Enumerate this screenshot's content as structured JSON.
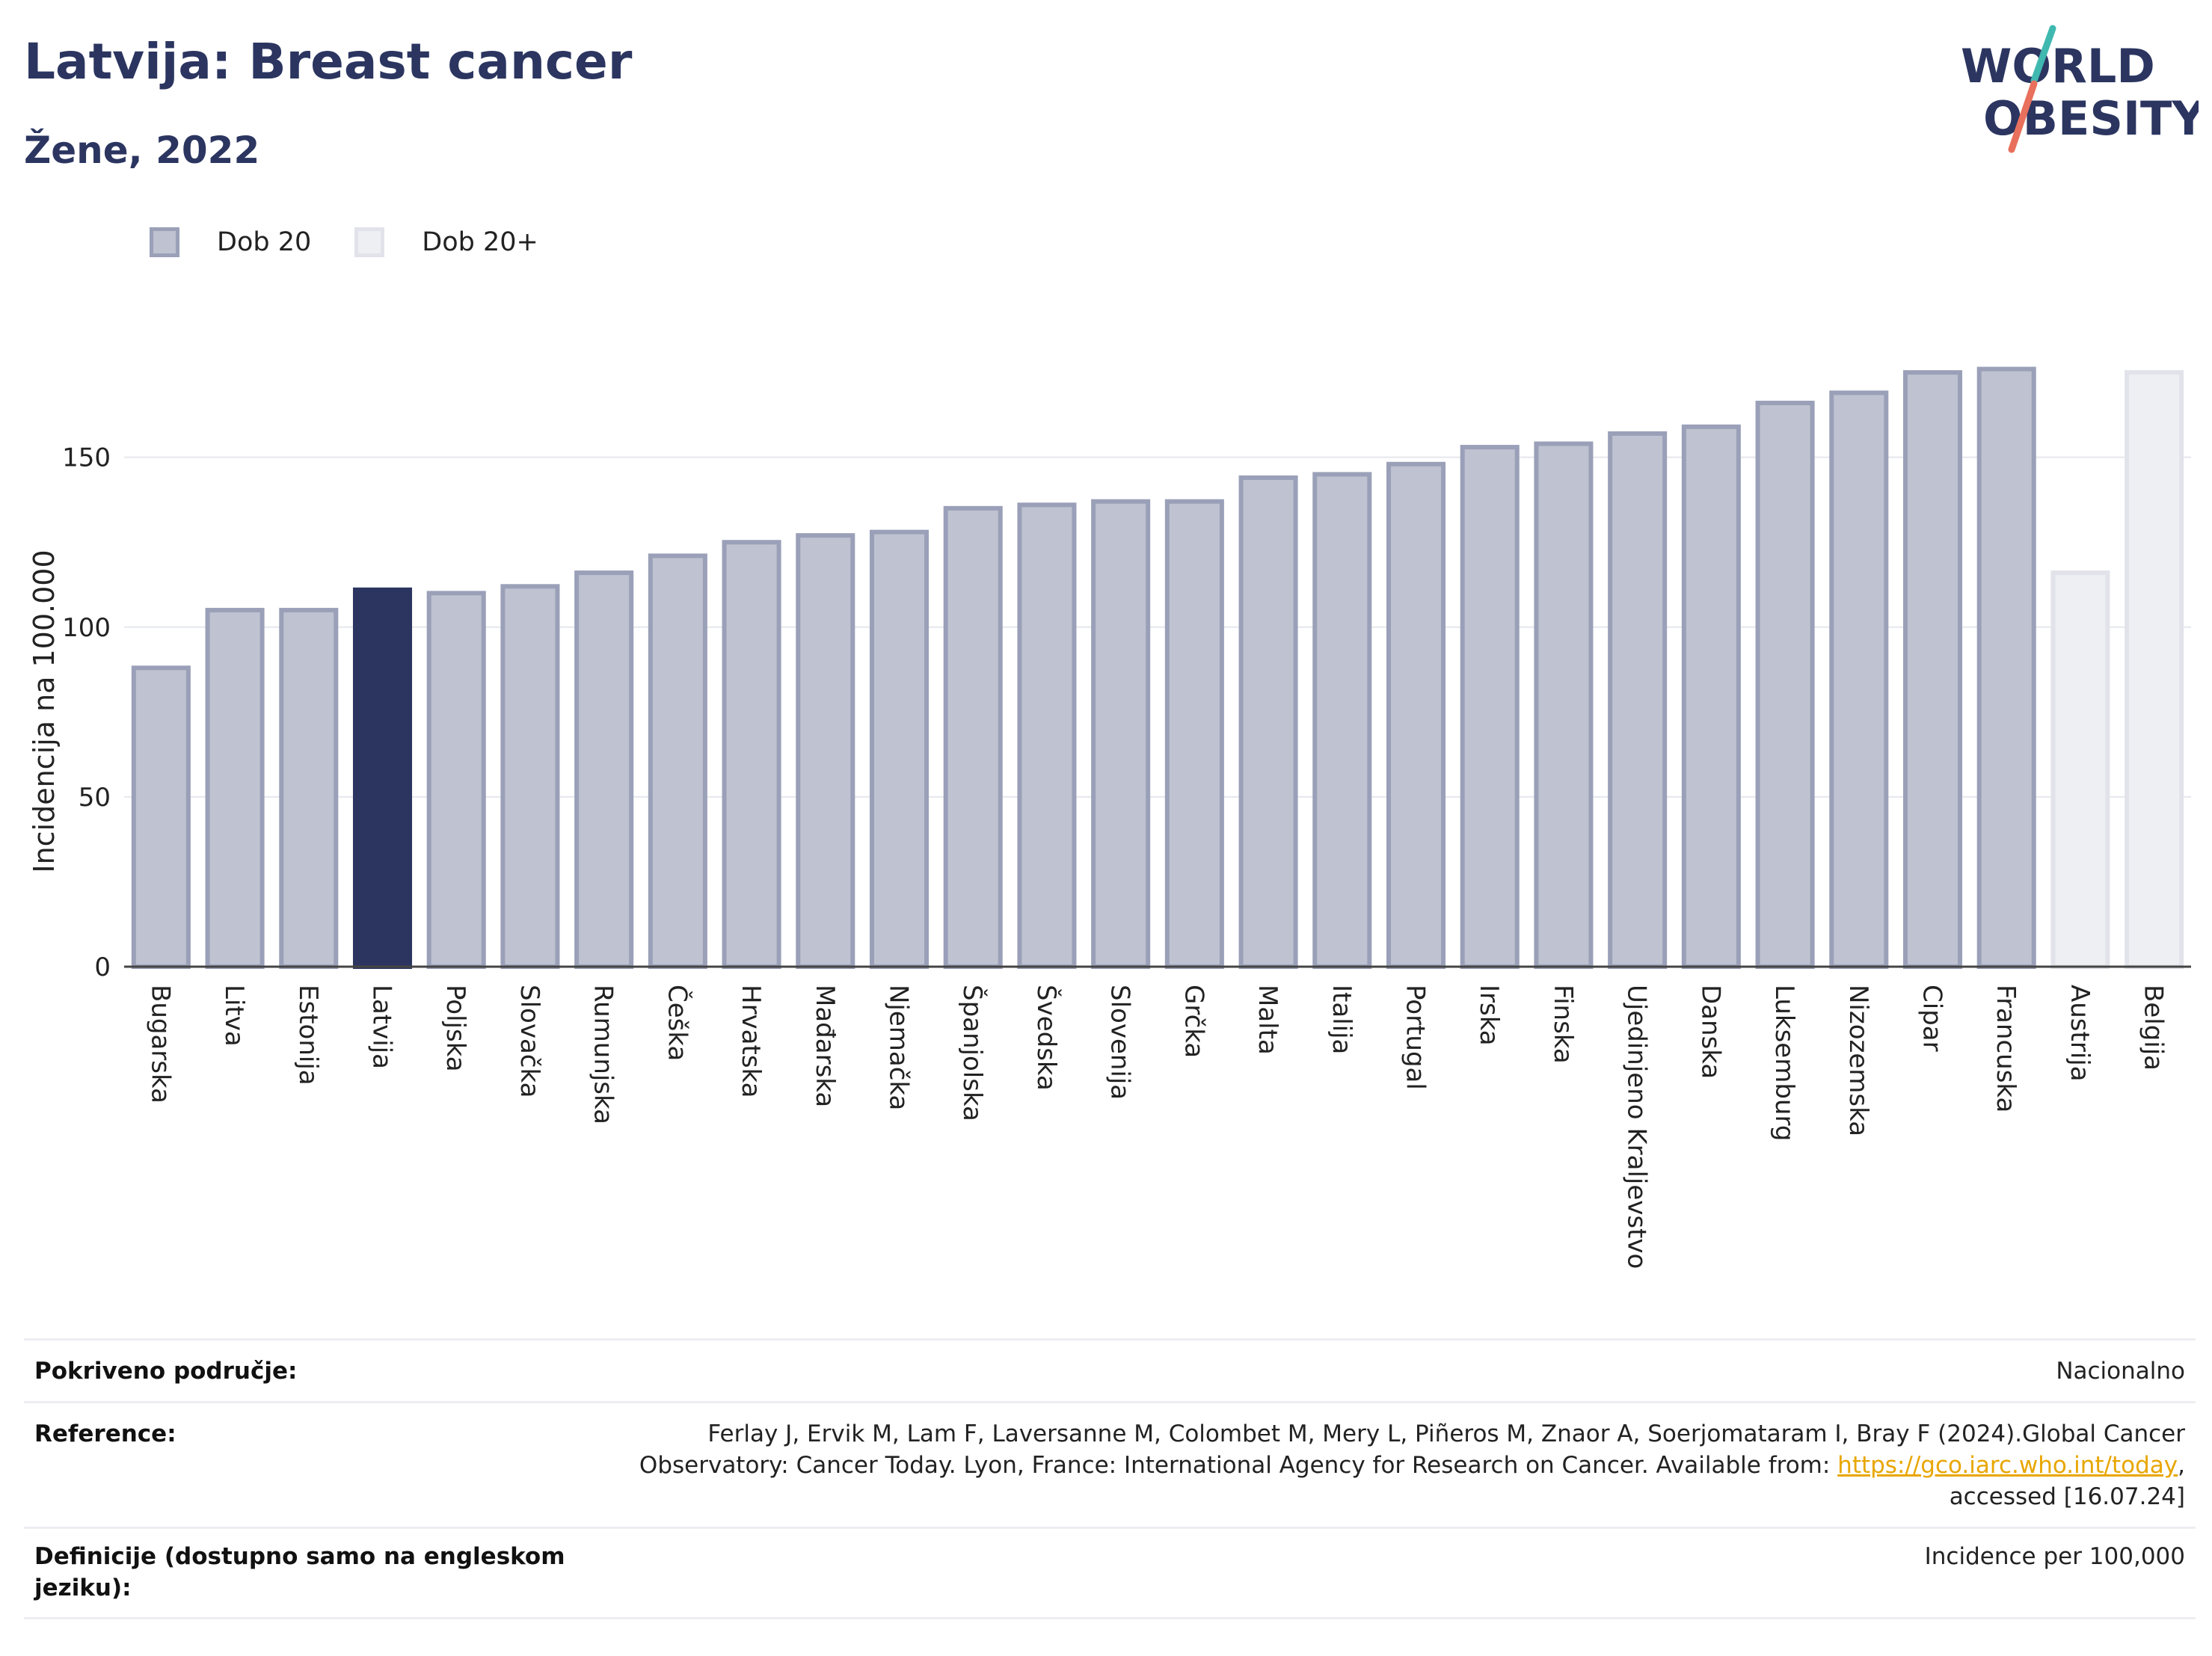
{
  "header": {
    "title": "Latvija: Breast cancer",
    "subtitle": "Žene, 2022",
    "logo_line1": "WORLD",
    "logo_line2": "OBESITY"
  },
  "legend": [
    {
      "label": "Dob 20",
      "color": "#bfc2d0",
      "border": "#9aa0b8"
    },
    {
      "label": "Dob 20+",
      "color": "#eeeff3",
      "border": "#e2e3ea"
    }
  ],
  "chart_data": {
    "type": "bar",
    "ylabel": "Incidencija na 100.000",
    "ylim": [
      0,
      190
    ],
    "yticks": [
      0,
      50,
      100,
      150
    ],
    "grid": true,
    "legend_position": "top-left",
    "highlight": "Latvija",
    "categories": [
      "Bugarska",
      "Litva",
      "Estonija",
      "Latvija",
      "Poljska",
      "Slovačka",
      "Rumunjska",
      "Češka",
      "Hrvatska",
      "Mađarska",
      "Njemačka",
      "Španjolska",
      "Švedska",
      "Slovenija",
      "Grčka",
      "Malta",
      "Italija",
      "Portugal",
      "Irska",
      "Finska",
      "Ujedinjeno Kraljevstvo",
      "Danska",
      "Luksemburg",
      "Nizozemska",
      "Cipar",
      "Francuska",
      "Austrija",
      "Belgija"
    ],
    "values": [
      88,
      105,
      105,
      111,
      110,
      112,
      116,
      121,
      125,
      127,
      128,
      135,
      136,
      137,
      137,
      144,
      145,
      148,
      153,
      154,
      157,
      159,
      166,
      169,
      175,
      176,
      116,
      175
    ],
    "series_of_bar": [
      "Dob 20",
      "Dob 20",
      "Dob 20",
      "Dob 20",
      "Dob 20",
      "Dob 20",
      "Dob 20",
      "Dob 20",
      "Dob 20",
      "Dob 20",
      "Dob 20",
      "Dob 20",
      "Dob 20",
      "Dob 20",
      "Dob 20",
      "Dob 20",
      "Dob 20",
      "Dob 20",
      "Dob 20",
      "Dob 20",
      "Dob 20",
      "Dob 20",
      "Dob 20",
      "Dob 20",
      "Dob 20",
      "Dob 20",
      "Dob 20+",
      "Dob 20+"
    ],
    "colors": {
      "highlight": "#2b3560",
      "base": "#bfc2d0",
      "base_border": "#9aa0b8",
      "light": "#eeeff3",
      "light_border": "#e2e3ea",
      "grid": "#e6e7ee"
    }
  },
  "meta": {
    "coverage_label": "Pokriveno područje:",
    "coverage_value": "Nacionalno",
    "reference_label": "Reference:",
    "reference_line1": "Ferlay J, Ervik M, Lam F, Laversanne M, Colombet M, Mery L, Piñeros M, Znaor A, Soerjomataram I, Bray F (2024).Global Cancer",
    "reference_line2_pre": "Observatory: Cancer Today. Lyon, France: International Agency for Research on Cancer. Available from: ",
    "reference_link": "https://gco.iarc.who.int/today",
    "reference_line2_post": ",",
    "reference_line3": "accessed [16.07.24]",
    "definitions_label": "Definicije (dostupno samo na engleskom jeziku):",
    "definitions_value": "Incidence per 100,000"
  }
}
